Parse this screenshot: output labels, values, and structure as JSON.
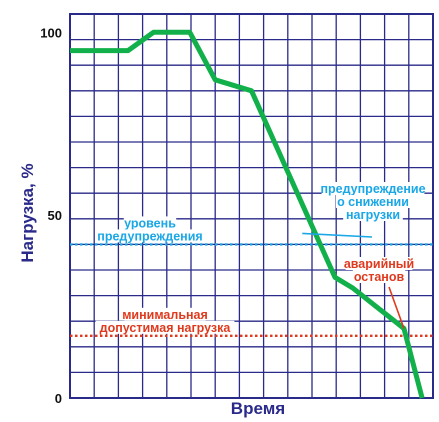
{
  "chart_data": {
    "type": "line",
    "title": "",
    "xlabel": "Время",
    "ylabel": "Нагрузка, %",
    "ylim": [
      0,
      105
    ],
    "y_ticks": [
      0,
      50,
      100
    ],
    "grid": true,
    "grid_color": "#2a2a8a",
    "series": [
      {
        "color": "#12b04a",
        "x": [
          0,
          1.6,
          2.3,
          3.3,
          4.0,
          5.0,
          7.3,
          7.8,
          9.2,
          9.7
        ],
        "y": [
          95,
          95,
          100,
          100,
          87,
          84,
          33,
          30,
          19,
          0
        ]
      }
    ],
    "reference_lines": [
      {
        "y": 42,
        "color": "#1aa7e6",
        "label_lines": [
          "уровень",
          "предупреждения"
        ]
      },
      {
        "y": 17,
        "color": "#e03a1e",
        "label_lines": [
          "минимальная",
          "допустимая нагрузка"
        ]
      }
    ],
    "annotations": [
      {
        "text_lines": [
          "предупреждение",
          "о снижении",
          "нагрузки"
        ],
        "color": "#1aa7e6",
        "points_to": {
          "x": 6.4,
          "y": 45
        }
      },
      {
        "text_lines": [
          "аварийный",
          "останов"
        ],
        "color": "#e03a1e",
        "points_to": {
          "x": 9.2,
          "y": 19
        }
      }
    ]
  }
}
